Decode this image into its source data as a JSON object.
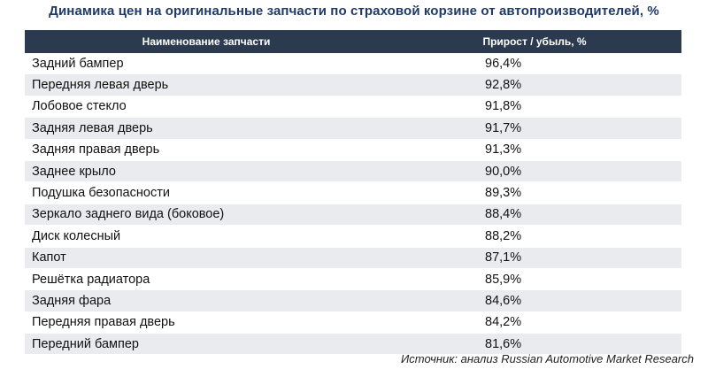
{
  "chart_data": {
    "type": "table",
    "title": "Динамика цен на оригинальные запчасти по страховой корзине от автопроизводителей, %",
    "columns": [
      "Наименование запчасти",
      "Прирост / убыль, %"
    ],
    "rows": [
      {
        "name": "Задний бампер",
        "value": "96,4%"
      },
      {
        "name": "Передняя левая дверь",
        "value": "92,8%"
      },
      {
        "name": "Лобовое стекло",
        "value": "91,8%"
      },
      {
        "name": "Задняя левая дверь",
        "value": "91,7%"
      },
      {
        "name": "Задняя правая дверь",
        "value": "91,3%"
      },
      {
        "name": "Заднее крыло",
        "value": "90,0%"
      },
      {
        "name": "Подушка безопасности",
        "value": "89,3%"
      },
      {
        "name": "Зеркало заднего вида (боковое)",
        "value": "88,4%"
      },
      {
        "name": "Диск колесный",
        "value": "88,2%"
      },
      {
        "name": "Капот",
        "value": "87,1%"
      },
      {
        "name": "Решётка радиатора",
        "value": "85,9%"
      },
      {
        "name": "Задняя фара",
        "value": "84,6%"
      },
      {
        "name": "Передняя правая дверь",
        "value": "84,2%"
      },
      {
        "name": "Передний бампер",
        "value": "81,6%"
      }
    ],
    "source": "Источник: анализ Russian Automotive Market Research",
    "colors": {
      "header_bg": "#2b3a4f",
      "title": "#1f3a66",
      "row_alt": "#e9ebee"
    }
  }
}
